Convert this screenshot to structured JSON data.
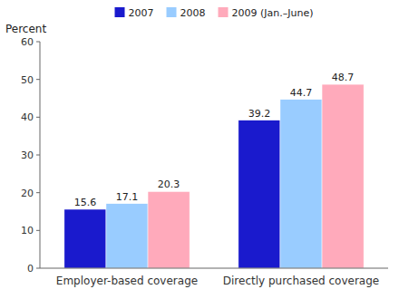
{
  "chart_data": {
    "type": "bar",
    "ylabel": "Percent",
    "categories": [
      "Employer-based coverage",
      "Directly purchased coverage"
    ],
    "series": [
      {
        "name": "2007",
        "values": [
          15.6,
          39.2
        ],
        "color": "#1a1acd"
      },
      {
        "name": "2008",
        "values": [
          17.1,
          44.7
        ],
        "color": "#99ccff"
      },
      {
        "name": "2009 (Jan.–June)",
        "values": [
          20.3,
          48.7
        ],
        "color": "#ffaabb"
      }
    ],
    "ylim": [
      0,
      60
    ],
    "yticks": [
      0,
      10,
      20,
      30,
      40,
      50,
      60
    ],
    "data_labels": true,
    "legend": "top",
    "grid": false
  }
}
